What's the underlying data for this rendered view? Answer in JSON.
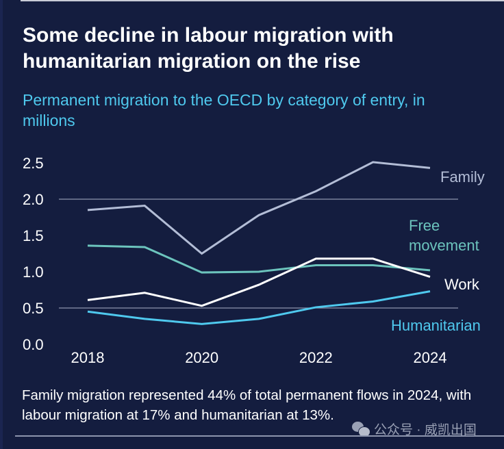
{
  "header": {
    "title": "Some decline in labour migration with humanitarian migration on the rise",
    "subtitle": "Permanent migration to the OECD by category of entry, in millions"
  },
  "chart_data": {
    "type": "line",
    "title": "Some decline in labour migration with humanitarian migration on the rise",
    "subtitle": "Permanent migration to the OECD by category of entry, in millions",
    "xlabel": "",
    "ylabel": "",
    "x": [
      2018,
      2019,
      2020,
      2021,
      2022,
      2023,
      2024
    ],
    "x_ticks": [
      "2018",
      "2020",
      "2022",
      "2024"
    ],
    "y_ticks": [
      "0.0",
      "0.5",
      "1.0",
      "1.5",
      "2.0",
      "2.5"
    ],
    "ylim": [
      0,
      2.5
    ],
    "grid": "horizontal lines at 0.5 and 2.0",
    "legend": "direct labels at right end of each line",
    "series": [
      {
        "name": "Family",
        "color": "#b3bdd6",
        "values": [
          1.85,
          1.91,
          1.25,
          1.78,
          2.11,
          2.51,
          2.43
        ]
      },
      {
        "name": "Free movement",
        "color": "#6cc4bd",
        "values": [
          1.36,
          1.34,
          0.99,
          1.0,
          1.09,
          1.09,
          1.02
        ]
      },
      {
        "name": "Work",
        "color": "#ffffff",
        "values": [
          0.61,
          0.71,
          0.53,
          0.82,
          1.18,
          1.18,
          0.93
        ]
      },
      {
        "name": "Humanitarian",
        "color": "#4fc9ee",
        "values": [
          0.45,
          0.35,
          0.28,
          0.35,
          0.51,
          0.59,
          0.73
        ]
      }
    ]
  },
  "labels": {
    "family": "Family",
    "free_line1": "Free",
    "free_line2": "movement",
    "work": "Work",
    "humanitarian": "Humanitarian"
  },
  "footnote": "Family migration represented 44% of total permanent flows in 2024, with labour migration at 17% and humanitarian at 13%.",
  "watermark": "公众号 · 威凯出国"
}
